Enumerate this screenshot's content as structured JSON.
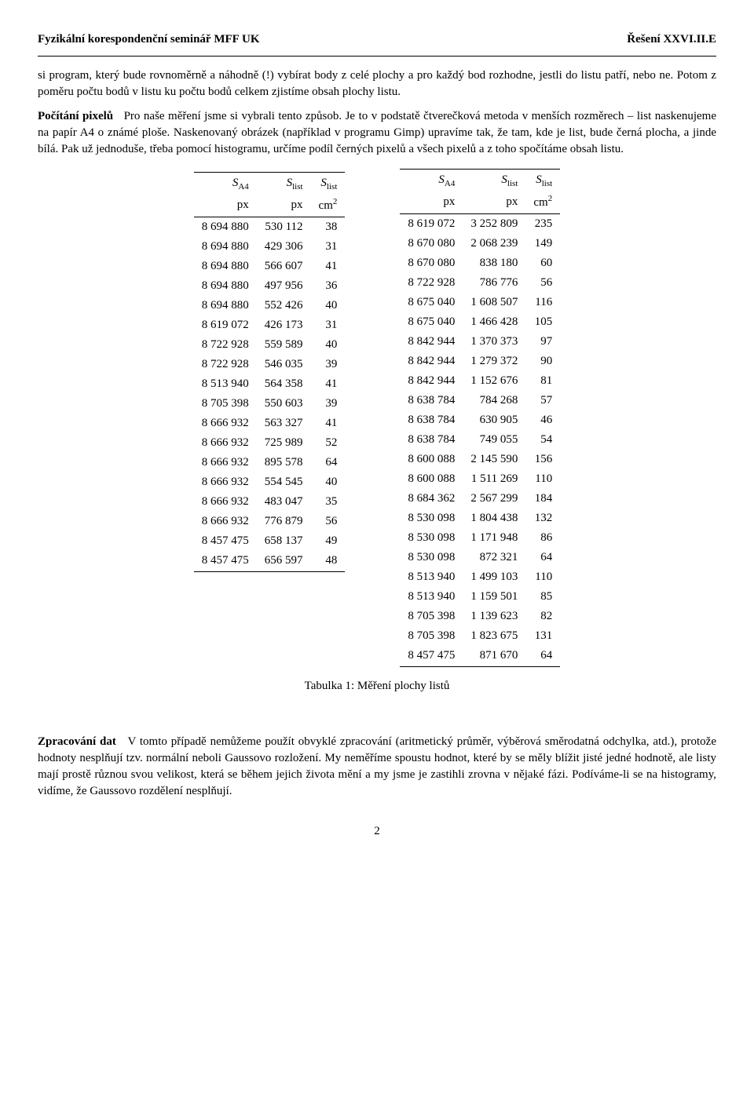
{
  "header": {
    "left": "Fyzikální korespondenční seminář MFF UK",
    "right": "Řešení XXVI.II.E"
  },
  "para1": "si program, který bude rovnoměrně a náhodně (!) vybírat body z celé plochy a pro každý bod rozhodne, jestli do listu patří, nebo ne. Potom z poměru počtu bodů v listu ku počtu bodů celkem zjistíme obsah plochy listu.",
  "para2_lead": "Počítání pixelů",
  "para2": "Pro naše měření jsme si vybrali tento způsob. Je to v podstatě čtverečková metoda v menších rozměrech – list naskenujeme na papír A4 o známé ploše. Naskenovaný obrázek (například v programu Gimp) upravíme tak, že tam, kde je list, bude černá plocha, a jinde bílá. Pak už jednoduše, třeba pomocí histogramu, určíme podíl černých pixelů a všech pixelů a z toho spočítáme obsah listu.",
  "table_header": {
    "col1_sym": "S",
    "col1_sub": "A4",
    "col1_unit": "px",
    "col2_sym": "S",
    "col2_sub": "list",
    "col2_unit": "px",
    "col3_sym": "S",
    "col3_sub": "list",
    "col3_unit": "cm",
    "col3_sup": "2"
  },
  "table_left": [
    [
      "8 694 880",
      "530 112",
      "38"
    ],
    [
      "8 694 880",
      "429 306",
      "31"
    ],
    [
      "8 694 880",
      "566 607",
      "41"
    ],
    [
      "8 694 880",
      "497 956",
      "36"
    ],
    [
      "8 694 880",
      "552 426",
      "40"
    ],
    [
      "8 619 072",
      "426 173",
      "31"
    ],
    [
      "8 722 928",
      "559 589",
      "40"
    ],
    [
      "8 722 928",
      "546 035",
      "39"
    ],
    [
      "8 513 940",
      "564 358",
      "41"
    ],
    [
      "8 705 398",
      "550 603",
      "39"
    ],
    [
      "8 666 932",
      "563 327",
      "41"
    ],
    [
      "8 666 932",
      "725 989",
      "52"
    ],
    [
      "8 666 932",
      "895 578",
      "64"
    ],
    [
      "8 666 932",
      "554 545",
      "40"
    ],
    [
      "8 666 932",
      "483 047",
      "35"
    ],
    [
      "8 666 932",
      "776 879",
      "56"
    ],
    [
      "8 457 475",
      "658 137",
      "49"
    ],
    [
      "8 457 475",
      "656 597",
      "48"
    ]
  ],
  "table_right": [
    [
      "8 619 072",
      "3 252 809",
      "235"
    ],
    [
      "8 670 080",
      "2 068 239",
      "149"
    ],
    [
      "8 670 080",
      "838 180",
      "60"
    ],
    [
      "8 722 928",
      "786 776",
      "56"
    ],
    [
      "8 675 040",
      "1 608 507",
      "116"
    ],
    [
      "8 675 040",
      "1 466 428",
      "105"
    ],
    [
      "8 842 944",
      "1 370 373",
      "97"
    ],
    [
      "8 842 944",
      "1 279 372",
      "90"
    ],
    [
      "8 842 944",
      "1 152 676",
      "81"
    ],
    [
      "8 638 784",
      "784 268",
      "57"
    ],
    [
      "8 638 784",
      "630 905",
      "46"
    ],
    [
      "8 638 784",
      "749 055",
      "54"
    ],
    [
      "8 600 088",
      "2 145 590",
      "156"
    ],
    [
      "8 600 088",
      "1 511 269",
      "110"
    ],
    [
      "8 684 362",
      "2 567 299",
      "184"
    ],
    [
      "8 530 098",
      "1 804 438",
      "132"
    ],
    [
      "8 530 098",
      "1 171 948",
      "86"
    ],
    [
      "8 530 098",
      "872 321",
      "64"
    ],
    [
      "8 513 940",
      "1 499 103",
      "110"
    ],
    [
      "8 513 940",
      "1 159 501",
      "85"
    ],
    [
      "8 705 398",
      "1 139 623",
      "82"
    ],
    [
      "8 705 398",
      "1 823 675",
      "131"
    ],
    [
      "8 457 475",
      "871 670",
      "64"
    ]
  ],
  "caption": "Tabulka 1: Měření plochy listů",
  "para3_lead": "Zpracování dat",
  "para3": "V tomto případě nemůžeme použít obvyklé zpracování (aritmetický průměr, výběrová směrodatná odchylka, atd.), protože hodnoty nesplňují tzv. normální neboli Gaussovo rozložení. My neměříme spoustu hodnot, které by se měly blížit jisté jedné hodnotě, ale listy mají prostě různou svou velikost, která se během jejich života mění a my jsme je zastihli zrovna v nějaké fázi. Podíváme-li se na histogramy, vidíme, že Gaussovo rozdělení nesplňují.",
  "pagenum": "2"
}
